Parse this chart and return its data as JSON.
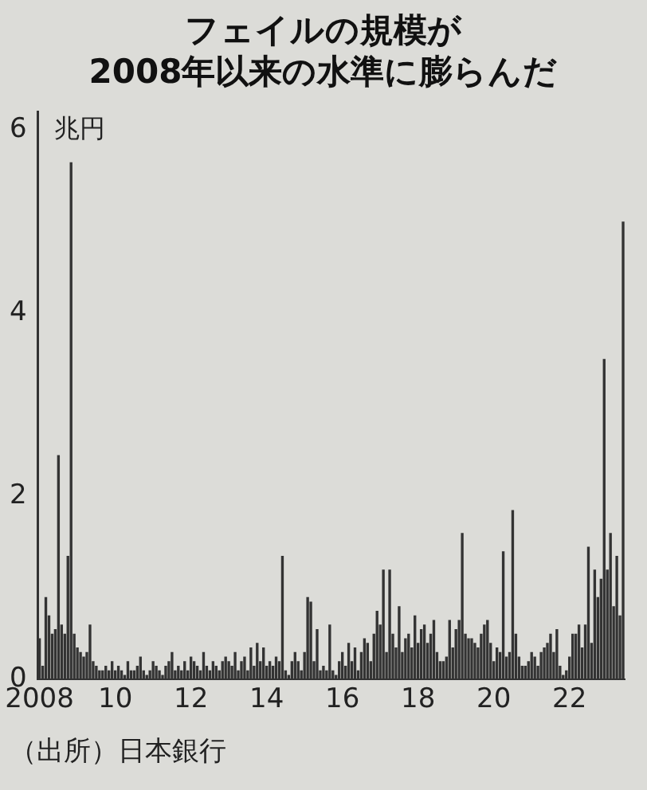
{
  "chart_data": {
    "type": "bar",
    "title": "フェイルの規模が\n2008年以来の水準に膨らんだ",
    "ylabel": "兆円",
    "annotations": [
      "（出所）日本銀行"
    ],
    "categories": [
      "2008",
      null,
      null,
      null,
      null,
      null,
      null,
      null,
      null,
      null,
      null,
      null,
      null,
      null,
      null,
      null,
      null,
      null,
      null,
      null,
      null,
      null,
      null,
      null,
      "10",
      null,
      null,
      null,
      null,
      null,
      null,
      null,
      null,
      null,
      null,
      null,
      null,
      null,
      null,
      null,
      null,
      null,
      null,
      null,
      null,
      null,
      null,
      null,
      "12",
      null,
      null,
      null,
      null,
      null,
      null,
      null,
      null,
      null,
      null,
      null,
      null,
      null,
      null,
      null,
      null,
      null,
      null,
      null,
      null,
      null,
      null,
      null,
      "14",
      null,
      null,
      null,
      null,
      null,
      null,
      null,
      null,
      null,
      null,
      null,
      null,
      null,
      null,
      null,
      null,
      null,
      null,
      null,
      null,
      null,
      null,
      null,
      "16",
      null,
      null,
      null,
      null,
      null,
      null,
      null,
      null,
      null,
      null,
      null,
      null,
      null,
      null,
      null,
      null,
      null,
      null,
      null,
      null,
      null,
      null,
      null,
      "18",
      null,
      null,
      null,
      null,
      null,
      null,
      null,
      null,
      null,
      null,
      null,
      null,
      null,
      null,
      null,
      null,
      null,
      null,
      null,
      null,
      null,
      null,
      null,
      "20",
      null,
      null,
      null,
      null,
      null,
      null,
      null,
      null,
      null,
      null,
      null,
      null,
      null,
      null,
      null,
      null,
      null,
      null,
      null,
      null,
      null,
      null,
      null,
      "22",
      null,
      null,
      null,
      null,
      null,
      null,
      null,
      null,
      null,
      null,
      null,
      null,
      null,
      null,
      null,
      null,
      null
    ],
    "values": [
      0.45,
      0.15,
      0.9,
      0.7,
      0.5,
      0.55,
      2.45,
      0.6,
      0.5,
      1.35,
      5.65,
      0.5,
      0.35,
      0.3,
      0.25,
      0.3,
      0.6,
      0.2,
      0.15,
      0.1,
      0.1,
      0.15,
      0.1,
      0.2,
      0.1,
      0.15,
      0.1,
      0.05,
      0.2,
      0.1,
      0.1,
      0.15,
      0.25,
      0.1,
      0.05,
      0.1,
      0.2,
      0.15,
      0.1,
      0.05,
      0.15,
      0.2,
      0.3,
      0.1,
      0.15,
      0.1,
      0.2,
      0.1,
      0.25,
      0.2,
      0.15,
      0.1,
      0.3,
      0.15,
      0.1,
      0.2,
      0.15,
      0.1,
      0.2,
      0.25,
      0.2,
      0.15,
      0.3,
      0.1,
      0.2,
      0.25,
      0.1,
      0.35,
      0.15,
      0.4,
      0.2,
      0.35,
      0.15,
      0.2,
      0.15,
      0.25,
      0.2,
      1.35,
      0.1,
      0.05,
      0.2,
      0.3,
      0.2,
      0.1,
      0.3,
      0.9,
      0.85,
      0.2,
      0.55,
      0.1,
      0.15,
      0.1,
      0.6,
      0.1,
      0.05,
      0.2,
      0.3,
      0.15,
      0.4,
      0.2,
      0.35,
      0.1,
      0.3,
      0.45,
      0.4,
      0.2,
      0.5,
      0.75,
      0.6,
      1.2,
      0.3,
      1.2,
      0.5,
      0.35,
      0.8,
      0.3,
      0.45,
      0.5,
      0.35,
      0.7,
      0.4,
      0.55,
      0.6,
      0.4,
      0.5,
      0.65,
      0.3,
      0.2,
      0.2,
      0.25,
      0.65,
      0.35,
      0.55,
      0.65,
      1.6,
      0.5,
      0.45,
      0.45,
      0.4,
      0.35,
      0.5,
      0.6,
      0.65,
      0.4,
      0.2,
      0.35,
      0.3,
      1.4,
      0.25,
      0.3,
      1.85,
      0.5,
      0.25,
      0.15,
      0.15,
      0.2,
      0.3,
      0.25,
      0.15,
      0.3,
      0.35,
      0.4,
      0.5,
      0.3,
      0.55,
      0.15,
      0.05,
      0.1,
      0.25,
      0.5,
      0.5,
      0.6,
      0.35,
      0.6,
      1.45,
      0.4,
      1.2,
      0.9,
      1.1,
      3.5,
      1.2,
      1.6,
      0.8,
      1.35,
      0.7,
      5.0
    ],
    "color": "#333333",
    "ylim": [
      0,
      6.2
    ],
    "yticks": [
      0,
      2,
      4,
      6
    ],
    "grid": false,
    "legend": false
  }
}
